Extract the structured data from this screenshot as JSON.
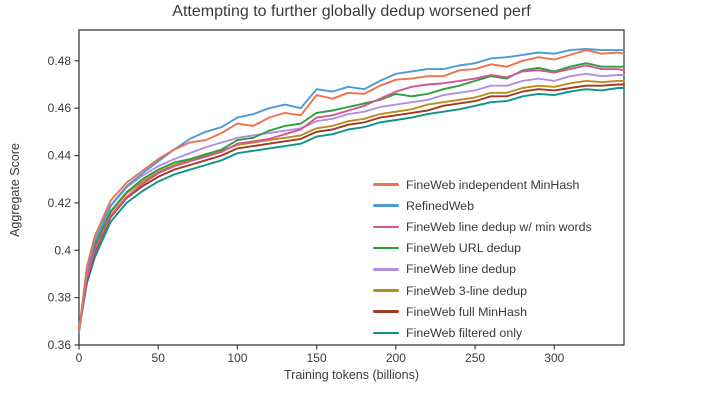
{
  "figure": {
    "background": "#ffffff",
    "text_color": "#3b3b3b",
    "spine_color": "#3b3b3b"
  },
  "chart_data": {
    "type": "line",
    "title": "Attempting to further globally dedup worsened perf",
    "xlabel": "Training tokens (billions)",
    "ylabel": "Aggregate Score",
    "xlim": [
      0,
      344
    ],
    "ylim": [
      0.36,
      0.493
    ],
    "xticks": [
      0,
      50,
      100,
      150,
      200,
      250,
      300
    ],
    "yticks": [
      0.36,
      0.38,
      0.4,
      0.42,
      0.44,
      0.46,
      0.48
    ],
    "ytick_labels": [
      "0.36",
      "0.38",
      "0.4",
      "0.42",
      "0.44",
      "0.46",
      "0.48"
    ],
    "grid": false,
    "legend_position": "lower right",
    "x": [
      0,
      5,
      10,
      20,
      30,
      40,
      50,
      60,
      70,
      80,
      90,
      100,
      110,
      120,
      130,
      140,
      150,
      160,
      170,
      180,
      190,
      200,
      210,
      220,
      230,
      240,
      250,
      260,
      270,
      280,
      290,
      300,
      310,
      320,
      330,
      340,
      344
    ],
    "series": [
      {
        "name": "FineWeb independent MinHash",
        "color": "#EE724D",
        "values": [
          0.366,
          0.393,
          0.406,
          0.421,
          0.4285,
          0.4335,
          0.4385,
          0.4425,
          0.4455,
          0.4465,
          0.4495,
          0.4535,
          0.4525,
          0.456,
          0.458,
          0.457,
          0.4655,
          0.464,
          0.4665,
          0.466,
          0.4695,
          0.472,
          0.4725,
          0.4735,
          0.4735,
          0.476,
          0.4765,
          0.4785,
          0.4775,
          0.48,
          0.4815,
          0.4805,
          0.4825,
          0.4845,
          0.483,
          0.4835,
          0.483
        ]
      },
      {
        "name": "RefinedWeb",
        "color": "#4D99DB",
        "values": [
          0.365,
          0.391,
          0.404,
          0.419,
          0.427,
          0.4325,
          0.4375,
          0.4425,
          0.447,
          0.45,
          0.452,
          0.456,
          0.4575,
          0.46,
          0.4615,
          0.46,
          0.468,
          0.467,
          0.469,
          0.468,
          0.4715,
          0.4745,
          0.4755,
          0.4765,
          0.4765,
          0.478,
          0.479,
          0.481,
          0.4815,
          0.4825,
          0.4835,
          0.483,
          0.4845,
          0.485,
          0.4845,
          0.4845,
          0.4845
        ]
      },
      {
        "name": "FineWeb line dedup w/ min words",
        "color": "#D65496",
        "values": [
          0.366,
          0.388,
          0.4,
          0.4145,
          0.4225,
          0.428,
          0.4325,
          0.4355,
          0.4375,
          0.4395,
          0.4415,
          0.445,
          0.446,
          0.447,
          0.449,
          0.451,
          0.456,
          0.457,
          0.459,
          0.461,
          0.464,
          0.467,
          0.469,
          0.47,
          0.4705,
          0.4715,
          0.4725,
          0.474,
          0.473,
          0.4755,
          0.476,
          0.475,
          0.4765,
          0.478,
          0.4765,
          0.4765,
          0.476
        ]
      },
      {
        "name": "FineWeb URL dedup",
        "color": "#2AA13C",
        "values": [
          0.366,
          0.39,
          0.402,
          0.4165,
          0.4245,
          0.43,
          0.434,
          0.437,
          0.4385,
          0.4405,
          0.4425,
          0.4465,
          0.4475,
          0.4505,
          0.4525,
          0.4535,
          0.458,
          0.459,
          0.4605,
          0.462,
          0.4635,
          0.466,
          0.465,
          0.466,
          0.468,
          0.4695,
          0.4715,
          0.4735,
          0.4725,
          0.476,
          0.477,
          0.4755,
          0.4775,
          0.479,
          0.4775,
          0.4775,
          0.4775
        ]
      },
      {
        "name": "FineWeb line dedup",
        "color": "#B48FE0",
        "values": [
          0.366,
          0.39,
          0.403,
          0.4185,
          0.4265,
          0.4315,
          0.4355,
          0.4385,
          0.441,
          0.4435,
          0.4455,
          0.4475,
          0.4485,
          0.4495,
          0.4505,
          0.4515,
          0.4545,
          0.4555,
          0.4575,
          0.4585,
          0.4605,
          0.4615,
          0.4625,
          0.4635,
          0.4655,
          0.4665,
          0.4675,
          0.4695,
          0.4695,
          0.4715,
          0.4725,
          0.4715,
          0.4735,
          0.4745,
          0.4735,
          0.474,
          0.474
        ]
      },
      {
        "name": "FineWeb 3-line dedup",
        "color": "#BD8B1F",
        "values": [
          0.366,
          0.389,
          0.401,
          0.416,
          0.424,
          0.429,
          0.433,
          0.436,
          0.438,
          0.44,
          0.442,
          0.4445,
          0.4455,
          0.4465,
          0.4475,
          0.4485,
          0.4515,
          0.4525,
          0.4545,
          0.4555,
          0.4575,
          0.4585,
          0.4595,
          0.4615,
          0.4625,
          0.4635,
          0.4645,
          0.4665,
          0.4665,
          0.4685,
          0.4695,
          0.469,
          0.4705,
          0.4715,
          0.471,
          0.4715,
          0.4715
        ]
      },
      {
        "name": "FineWeb full MinHash",
        "color": "#9E3B23",
        "values": [
          0.367,
          0.387,
          0.399,
          0.414,
          0.422,
          0.427,
          0.431,
          0.434,
          0.436,
          0.438,
          0.44,
          0.443,
          0.444,
          0.445,
          0.446,
          0.447,
          0.45,
          0.451,
          0.453,
          0.454,
          0.456,
          0.457,
          0.458,
          0.459,
          0.461,
          0.462,
          0.463,
          0.465,
          0.465,
          0.467,
          0.468,
          0.4675,
          0.4685,
          0.4695,
          0.4695,
          0.47,
          0.47
        ]
      },
      {
        "name": "FineWeb filtered only",
        "color": "#0D9488",
        "values": [
          0.366,
          0.386,
          0.397,
          0.412,
          0.42,
          0.425,
          0.429,
          0.432,
          0.434,
          0.436,
          0.438,
          0.441,
          0.442,
          0.443,
          0.444,
          0.445,
          0.448,
          0.449,
          0.451,
          0.452,
          0.454,
          0.455,
          0.456,
          0.4575,
          0.4585,
          0.4595,
          0.461,
          0.4625,
          0.463,
          0.465,
          0.466,
          0.4655,
          0.467,
          0.468,
          0.4675,
          0.4685,
          0.4685
        ]
      }
    ]
  }
}
